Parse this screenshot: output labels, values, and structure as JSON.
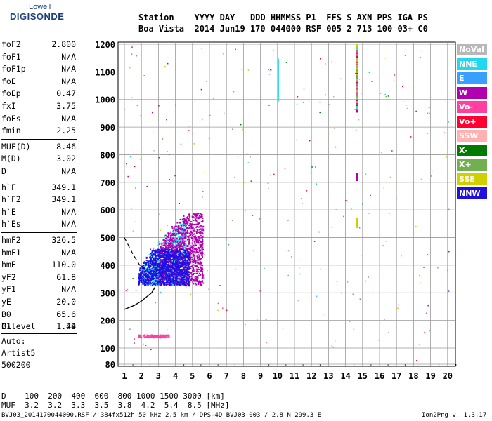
{
  "logo": {
    "line1": "Lowell",
    "line2": "DIGISONDE"
  },
  "header": {
    "line1": "Station    YYYY DAY   DDD HHMMSS P1  FFS S AXN PPS IGA PS",
    "line2": "Boa Vista  2014 Jun19 170 044000 RSF 005 2 713 100 03+ C0"
  },
  "params_a": [
    {
      "label": "foF2",
      "value": "2.800"
    },
    {
      "label": "foF1",
      "value": "N/A"
    },
    {
      "label": "foF1p",
      "value": "N/A"
    },
    {
      "label": "foE",
      "value": "N/A"
    },
    {
      "label": "foEp",
      "value": "0.47"
    },
    {
      "label": "fxI",
      "value": "3.75"
    },
    {
      "label": "foEs",
      "value": "N/A"
    },
    {
      "label": "fmin",
      "value": "2.25"
    }
  ],
  "params_b": [
    {
      "label": "MUF(D)",
      "value": "8.46"
    },
    {
      "label": "M(D)",
      "value": "3.02"
    },
    {
      "label": "D",
      "value": "N/A"
    }
  ],
  "params_c": [
    {
      "label": "h`F",
      "value": "349.1"
    },
    {
      "label": "h`F2",
      "value": "349.1"
    },
    {
      "label": "h`E",
      "value": "N/A"
    },
    {
      "label": "h`Es",
      "value": "N/A"
    }
  ],
  "params_d": [
    {
      "label": "hmF2",
      "value": "326.5"
    },
    {
      "label": "hmF1",
      "value": "N/A"
    },
    {
      "label": "hmE",
      "value": "110.0"
    },
    {
      "label": "yF2",
      "value": "61.8"
    },
    {
      "label": "yF1",
      "value": "N/A"
    },
    {
      "label": "yE",
      "value": "20.0"
    },
    {
      "label": "B0",
      "value": "65.6"
    },
    {
      "label": "B1",
      "value": "1.79"
    }
  ],
  "clevel": {
    "label": "C-level",
    "value": "44"
  },
  "auto": {
    "line1": "Auto:",
    "line2": "Artist5",
    "line3": "500200"
  },
  "legend": [
    {
      "label": "NoVal",
      "color": "#b8b8b8"
    },
    {
      "label": "NNE",
      "color": "#22d8f0"
    },
    {
      "label": "E",
      "color": "#3aa0ff"
    },
    {
      "label": "W",
      "color": "#b000b0"
    },
    {
      "label": "Vo-",
      "color": "#ff40a0"
    },
    {
      "label": "Vo+",
      "color": "#ff0030"
    },
    {
      "label": "SSW",
      "color": "#ffb0b0"
    },
    {
      "label": "X-",
      "color": "#007a00"
    },
    {
      "label": "X+",
      "color": "#70b050"
    },
    {
      "label": "SSE",
      "color": "#d0d000"
    },
    {
      "label": "NNW",
      "color": "#2010e0"
    }
  ],
  "mufTable": {
    "row1": "D    100  200  400  600  800 1000 1500 3000 [km]",
    "row2": "MUF  3.2  3.2  3.3  3.5  3.8  4.2  5.4  8.5 [MHz]"
  },
  "footer": {
    "left": "BVJ03_2014170044000.RSF / 384fx512h 50 kHz 2.5 km / DPS-4D BVJ03 003 / 2.8 N 299.3 E",
    "right": "Ion2Png v. 1.3.17"
  },
  "chart_data": {
    "type": "scatter",
    "x_ticks": [
      1,
      2,
      3,
      4,
      5,
      6,
      7,
      8,
      9,
      10,
      11,
      12,
      13,
      14,
      15,
      16,
      17,
      18,
      19,
      20
    ],
    "y_ticks": [
      80,
      100,
      200,
      300,
      400,
      500,
      600,
      700,
      800,
      900,
      1000,
      1100,
      1200
    ],
    "xlim": [
      0.5,
      20.3
    ],
    "ylim": [
      80,
      1200
    ],
    "grid": true,
    "series": [
      {
        "name": "NNE",
        "color": "#22d8f0",
        "region": {
          "x": [
            2.0,
            4.6
          ],
          "y": [
            320,
            570
          ]
        }
      },
      {
        "name": "W",
        "color": "#b000b0",
        "region": {
          "x": [
            3.0,
            5.6
          ],
          "y": [
            330,
            590
          ]
        }
      },
      {
        "name": "NNW",
        "color": "#2010e0",
        "region": {
          "x": [
            1.8,
            4.8
          ],
          "y": [
            310,
            460
          ]
        }
      },
      {
        "name": "Vo-",
        "color": "#ff40a0",
        "region": {
          "x": [
            1.8,
            3.6
          ],
          "y": [
            140,
            150
          ]
        }
      }
    ],
    "profile_curve": [
      [
        1.0,
        240
      ],
      [
        1.6,
        255
      ],
      [
        2.0,
        270
      ],
      [
        2.3,
        285
      ],
      [
        2.6,
        300
      ],
      [
        2.8,
        320
      ]
    ],
    "profile_dashed": [
      [
        1.0,
        500
      ],
      [
        1.5,
        440
      ],
      [
        1.9,
        400
      ],
      [
        2.2,
        385
      ]
    ]
  }
}
